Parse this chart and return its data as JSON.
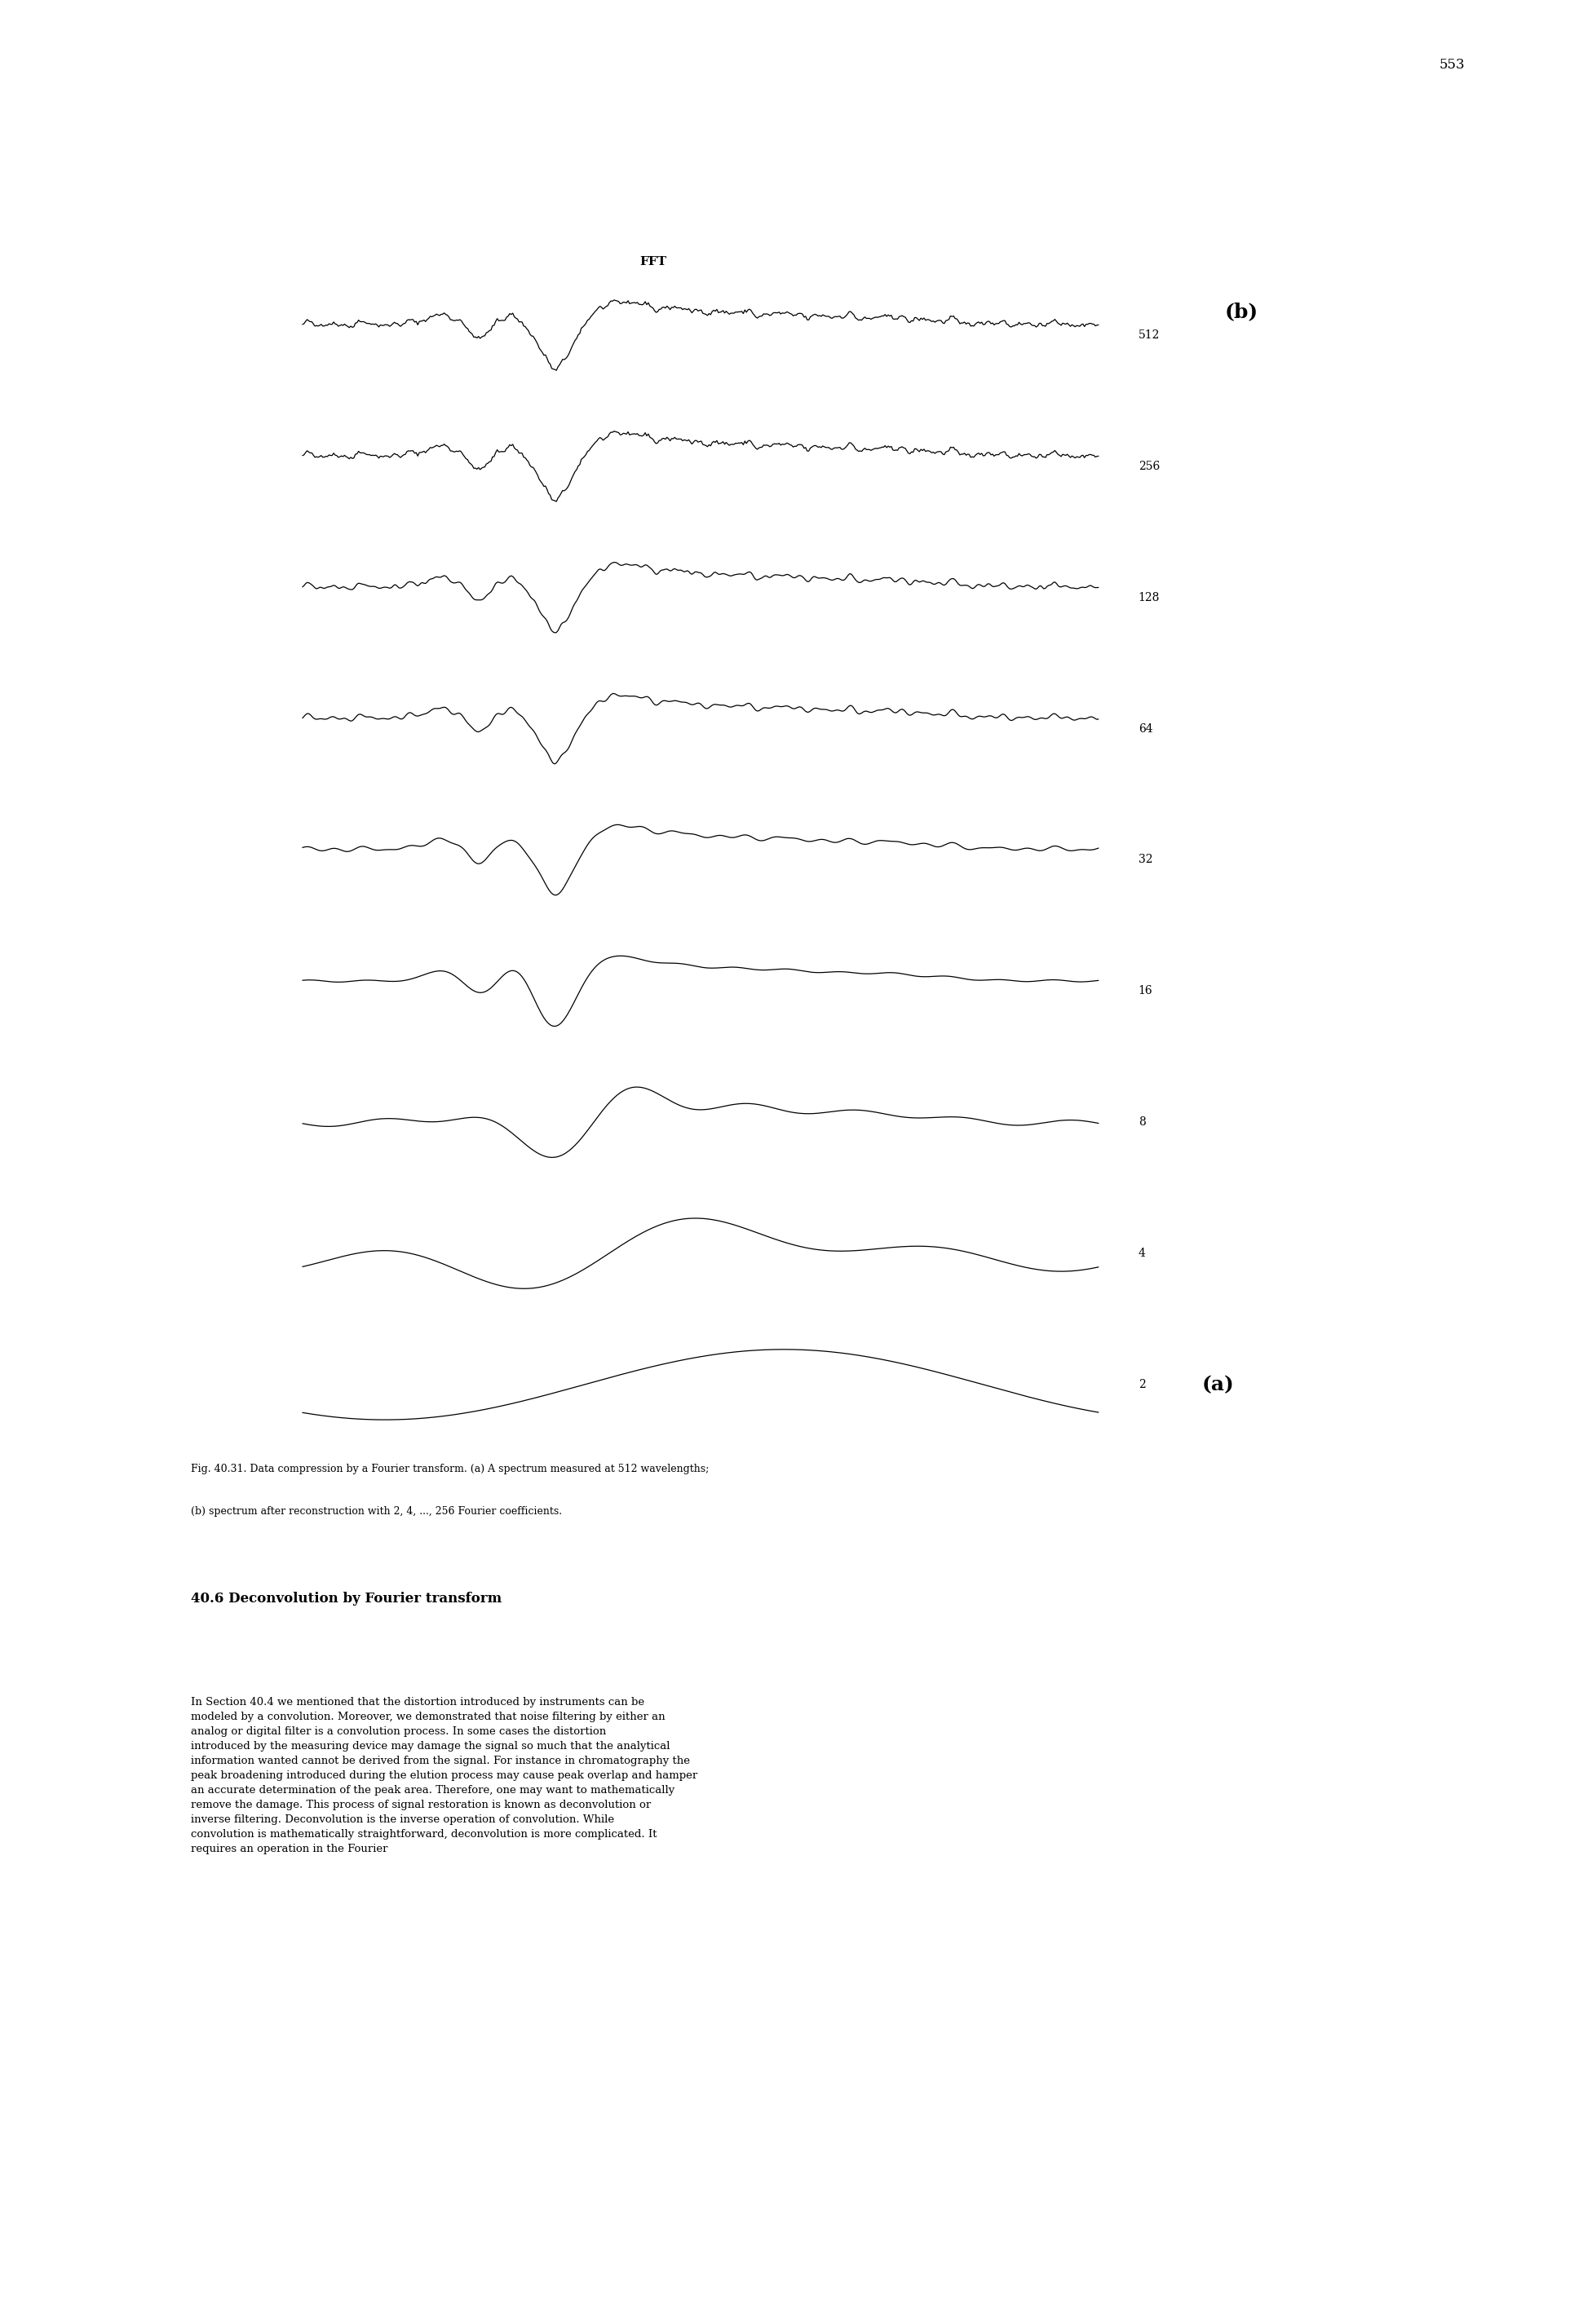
{
  "page_number": "553",
  "fft_label": "FFT",
  "b_label": "(b)",
  "a_label": "(a)",
  "coefficients": [
    2,
    4,
    8,
    16,
    32,
    64,
    128,
    256,
    512
  ],
  "caption": "Fig. 40.31. Data compression by a Fourier transform. (a) A spectrum measured at 512 wavelengths;\n(b) spectrum after reconstruction with 2, 4, ..., 256 Fourier coefficients.",
  "section_title": "40.6 Deconvolution by Fourier transform",
  "body_text": "In Section 40.4 we mentioned that the distortion introduced by instruments can be modeled by a convolution. Moreover, we demonstrated that noise filtering by either an analog or digital filter is a convolution process. In some cases the distortion introduced by the measuring device may damage the signal so much that the analytical information wanted cannot be derived from the signal. For instance in chromatography the peak broadening introduced during the elution process may cause peak overlap and hamper an accurate determination of the peak area. Therefore, one may want to mathematically remove the damage. This process of signal restoration is known as deconvolution or inverse filtering. Deconvolution is the inverse operation of convolution. While convolution is mathematically straightforward, deconvolution is more complicated. It requires an operation in the Fourier",
  "bg_color": "#ffffff",
  "line_color": "#000000",
  "n_points": 512
}
